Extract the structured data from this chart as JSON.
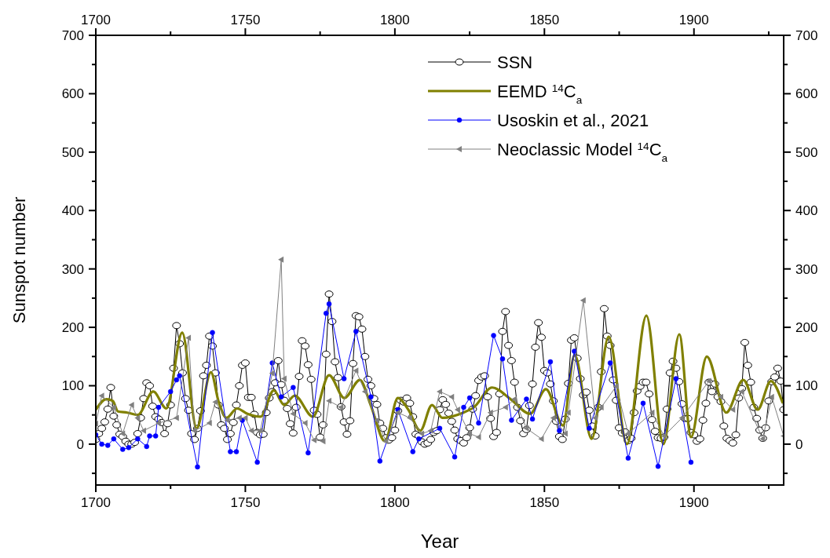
{
  "chart_data": {
    "type": "line",
    "xlabel": "Year",
    "ylabel": "Sunspot number",
    "xlim": [
      1700,
      1930
    ],
    "ylim": [
      -70,
      700
    ],
    "x2lim": [
      1700,
      1930
    ],
    "y2lim": [
      -70,
      700
    ],
    "xticks": [
      1700,
      {
        "value": 1725,
        "label": null
      },
      1750,
      {
        "value": 1775,
        "label": null
      },
      1800,
      {
        "value": 1825,
        "label": null
      },
      1850,
      {
        "value": 1875,
        "label": null
      },
      1900,
      {
        "value": 1925,
        "label": null
      }
    ],
    "x2ticks": [
      1700,
      {
        "value": 1725,
        "label": null
      },
      1750,
      {
        "value": 1775,
        "label": null
      },
      1800,
      {
        "value": 1825,
        "label": null
      },
      1850,
      {
        "value": 1875,
        "label": null
      },
      1900,
      {
        "value": 1925,
        "label": null
      }
    ],
    "yticks": [
      {
        "value": -50,
        "label": null
      },
      0,
      {
        "value": 50,
        "label": null
      },
      100,
      {
        "value": 150,
        "label": null
      },
      200,
      {
        "value": 250,
        "label": null
      },
      300,
      {
        "value": 350,
        "label": null
      },
      400,
      {
        "value": 450,
        "label": null
      },
      500,
      {
        "value": 550,
        "label": null
      },
      600,
      {
        "value": 650,
        "label": null
      },
      700
    ],
    "y2ticks": [
      {
        "value": -50,
        "label": null
      },
      0,
      {
        "value": 50,
        "label": null
      },
      100,
      {
        "value": 150,
        "label": null
      },
      200,
      {
        "value": 250,
        "label": null
      },
      300,
      {
        "value": 350,
        "label": null
      },
      400,
      {
        "value": 450,
        "label": null
      },
      500,
      {
        "value": 550,
        "label": null
      },
      600,
      {
        "value": 650,
        "label": null
      },
      700
    ],
    "grid": false,
    "legend": "top right",
    "series": [
      {
        "name": "SSN",
        "color": "#000000",
        "marker": "circle",
        "x": [
          1700,
          1701,
          1702,
          1703,
          1704,
          1705,
          1706,
          1707,
          1708,
          1709,
          1710,
          1711,
          1712,
          1713,
          1714,
          1715,
          1716,
          1717,
          1718,
          1719,
          1720,
          1721,
          1722,
          1723,
          1724,
          1725,
          1726,
          1727,
          1728,
          1729,
          1730,
          1731,
          1732,
          1733,
          1734,
          1735,
          1736,
          1737,
          1738,
          1739,
          1740,
          1741,
          1742,
          1743,
          1744,
          1745,
          1746,
          1747,
          1748,
          1749,
          1750,
          1751,
          1752,
          1753,
          1754,
          1755,
          1756,
          1757,
          1758,
          1759,
          1760,
          1761,
          1762,
          1763,
          1764,
          1765,
          1766,
          1767,
          1768,
          1769,
          1770,
          1771,
          1772,
          1773,
          1774,
          1775,
          1776,
          1777,
          1778,
          1779,
          1780,
          1781,
          1782,
          1783,
          1784,
          1785,
          1786,
          1787,
          1788,
          1789,
          1790,
          1791,
          1792,
          1793,
          1794,
          1795,
          1796,
          1797,
          1798,
          1799,
          1800,
          1801,
          1802,
          1803,
          1804,
          1805,
          1806,
          1807,
          1808,
          1809,
          1810,
          1811,
          1812,
          1813,
          1814,
          1815,
          1816,
          1817,
          1818,
          1819,
          1820,
          1821,
          1822,
          1823,
          1824,
          1825,
          1826,
          1827,
          1828,
          1829,
          1830,
          1831,
          1832,
          1833,
          1834,
          1835,
          1836,
          1837,
          1838,
          1839,
          1840,
          1841,
          1842,
          1843,
          1844,
          1845,
          1846,
          1847,
          1848,
          1849,
          1850,
          1851,
          1852,
          1853,
          1854,
          1855,
          1856,
          1857,
          1858,
          1859,
          1860,
          1861,
          1862,
          1863,
          1864,
          1865,
          1866,
          1867,
          1868,
          1869,
          1870,
          1871,
          1872,
          1873,
          1874,
          1875,
          1876,
          1877,
          1878,
          1879,
          1880,
          1881,
          1882,
          1883,
          1884,
          1885,
          1886,
          1887,
          1888,
          1889,
          1890,
          1891,
          1892,
          1893,
          1894,
          1895,
          1896,
          1897,
          1898,
          1899,
          1900,
          1901,
          1902,
          1903,
          1904,
          1905,
          1906,
          1907,
          1908,
          1909,
          1910,
          1911,
          1912,
          1913,
          1914,
          1915,
          1916,
          1917,
          1918,
          1919,
          1920,
          1921,
          1922,
          1923,
          1924,
          1925,
          1926,
          1927,
          1928,
          1929,
          1930
        ],
        "values": [
          8,
          18,
          27,
          38,
          60,
          97,
          48,
          33,
          17,
          13,
          5,
          0,
          0,
          3,
          18,
          45,
          78,
          105,
          100,
          65,
          47,
          43,
          37,
          18,
          35,
          67,
          130,
          203,
          172,
          122,
          78,
          58,
          18,
          8,
          27,
          57,
          117,
          135,
          185,
          168,
          122,
          67,
          33,
          27,
          8,
          18,
          37,
          67,
          100,
          135,
          139,
          80,
          80,
          51,
          20,
          16,
          17,
          54,
          79,
          90,
          105,
          143,
          102,
          75,
          61,
          35,
          19,
          63,
          116,
          177,
          168,
          136,
          111,
          58,
          51,
          12,
          33,
          154,
          257,
          210,
          141,
          114,
          64,
          38,
          17,
          40,
          138,
          220,
          218,
          197,
          150,
          111,
          100,
          78,
          68,
          36,
          27,
          11,
          7,
          11,
          24,
          57,
          75,
          72,
          79,
          70,
          47,
          17,
          14,
          4,
          0,
          2,
          8,
          20,
          23,
          59,
          76,
          68,
          53,
          39,
          24,
          9,
          6,
          2,
          11,
          28,
          60,
          83,
          109,
          115,
          117,
          81,
          44,
          13,
          20,
          86,
          193,
          227,
          169,
          143,
          106,
          63,
          40,
          18,
          25,
          66,
          103,
          166,
          208,
          183,
          126,
          122,
          103,
          74,
          39,
          13,
          8,
          43,
          104,
          178,
          182,
          147,
          112,
          84,
          89,
          58,
          31,
          14,
          63,
          124,
          232,
          185,
          169,
          110,
          75,
          28,
          19,
          21,
          6,
          10,
          54,
          91,
          99,
          106,
          106,
          86,
          42,
          22,
          11,
          10,
          12,
          60,
          122,
          142,
          130,
          107,
          69,
          44,
          44,
          20,
          16,
          5,
          9,
          41,
          70,
          106,
          90,
          103,
          81,
          73,
          31,
          10,
          6,
          2,
          16,
          79,
          95,
          174,
          135,
          106,
          63,
          44,
          24,
          10,
          28,
          74,
          107,
          115,
          130,
          108,
          59
        ]
      },
      {
        "name": "EEMD $^{14}$C$_{a}$",
        "color": "#808000",
        "marker": "none",
        "x": [
          1700,
          1703.5,
          1705.7,
          1707.4,
          1710.5,
          1714,
          1719.2,
          1723.6,
          1728.9,
          1733.7,
          1738.5,
          1741.1,
          1743.7,
          1747.2,
          1750.7,
          1755.1,
          1759.5,
          1763,
          1766.5,
          1772.6,
          1778,
          1783.1,
          1788.3,
          1791.9,
          1796.7,
          1801,
          1804.5,
          1808.5,
          1812.4,
          1815.9,
          1822.9,
          1826.4,
          1832.5,
          1838.7,
          1845.2,
          1850.5,
          1856.2,
          1860.1,
          1865.8,
          1871.5,
          1877.6,
          1884.1,
          1889.8,
          1895.1,
          1899,
          1904.3,
          1910.8,
          1916.5,
          1921.3,
          1925.7,
          1929.7
        ],
        "values": [
          59,
          77,
          74,
          56,
          54,
          50,
          90,
          61,
          191,
          27,
          123,
          72,
          45,
          61,
          52,
          47,
          92,
          67,
          83,
          47,
          118,
          79,
          110,
          67,
          5,
          79,
          59,
          23,
          67,
          45,
          54,
          63,
          97,
          77,
          52,
          94,
          32,
          153,
          9,
          184,
          0,
          220,
          0,
          188,
          12,
          150,
          54,
          110,
          59,
          108,
          70
        ]
      },
      {
        "name": "Usoskin et al., 2021",
        "color": "#0000ff",
        "marker": "circle",
        "x": [
          1700,
          1702,
          1704,
          1706,
          1709,
          1711,
          1714,
          1717,
          1718,
          1720,
          1721,
          1725,
          1727,
          1728,
          1734,
          1739,
          1745,
          1747,
          1749,
          1754,
          1759,
          1762,
          1766,
          1771,
          1777,
          1778,
          1783,
          1787,
          1792,
          1795,
          1801,
          1806,
          1808,
          1815,
          1820,
          1823,
          1825,
          1828,
          1833,
          1836,
          1839,
          1844,
          1846,
          1852,
          1855,
          1860,
          1865,
          1872,
          1878,
          1883,
          1888,
          1894,
          1899
        ],
        "values": [
          16,
          0,
          -2,
          9,
          -9,
          -6,
          9,
          -4,
          14,
          14,
          63,
          90,
          110,
          117,
          -39,
          191,
          -13,
          -13,
          41,
          -31,
          139,
          81,
          97,
          -15,
          224,
          240,
          112,
          193,
          81,
          -29,
          59,
          -13,
          9,
          27,
          -22,
          63,
          79,
          36,
          186,
          146,
          41,
          77,
          43,
          141,
          23,
          159,
          27,
          139,
          -24,
          70,
          -38,
          112,
          -31
        ]
      },
      {
        "name": "Neoclassic Model $^{14}$C$_{a}$",
        "color": "#808080",
        "marker": "triangle",
        "x": [
          1700,
          1702,
          1706,
          1709,
          1712,
          1714,
          1716,
          1721,
          1727,
          1731,
          1733,
          1738,
          1740,
          1744,
          1748,
          1750,
          1752,
          1755,
          1759,
          1762,
          1763,
          1766,
          1770,
          1773,
          1776,
          1778,
          1782,
          1787,
          1790,
          1794,
          1797,
          1801,
          1805,
          1809,
          1812,
          1815,
          1819,
          1821,
          1825,
          1828,
          1832,
          1837,
          1840,
          1844,
          1849,
          1853,
          1857,
          1858,
          1863,
          1867,
          1869,
          1874,
          1878,
          1886,
          1890,
          1896,
          1905,
          1909,
          1913,
          1916,
          1923,
          1926,
          1930
        ],
        "values": [
          35,
          83,
          63,
          18,
          67,
          45,
          23,
          36,
          45,
          182,
          23,
          36,
          72,
          41,
          45,
          45,
          23,
          23,
          121,
          316,
          112,
          52,
          36,
          7,
          5,
          74,
          63,
          126,
          90,
          41,
          5,
          54,
          45,
          18,
          23,
          90,
          81,
          59,
          18,
          12,
          54,
          63,
          77,
          27,
          9,
          45,
          18,
          54,
          246,
          45,
          63,
          99,
          18,
          54,
          14,
          45,
          108,
          81,
          59,
          90,
          9,
          81,
          14
        ]
      }
    ]
  }
}
